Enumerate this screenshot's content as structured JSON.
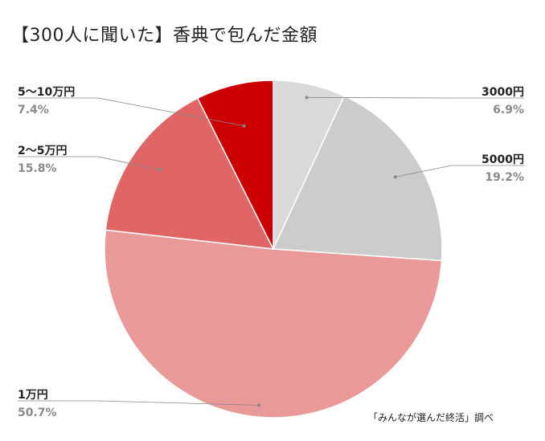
{
  "chart_data": {
    "type": "pie",
    "title": "【300人に聞いた】香典で包んだ金額",
    "start_angle_deg": 0,
    "direction": "clockwise",
    "slices": [
      {
        "label": "3000円",
        "value": 6.9,
        "value_label": "6.9%",
        "color": "#d9d9d9"
      },
      {
        "label": "5000円",
        "value": 19.2,
        "value_label": "19.2%",
        "color": "#cccccc"
      },
      {
        "label": "1万円",
        "value": 50.7,
        "value_label": "50.7%",
        "color": "#ea9999"
      },
      {
        "label": "2〜5万円",
        "value": 15.8,
        "value_label": "15.8%",
        "color": "#e06666"
      },
      {
        "label": "5〜10万円",
        "value": 7.4,
        "value_label": "7.4%",
        "color": "#cc0000"
      }
    ],
    "source_note": "「みんなが選んだ終活」調べ"
  }
}
